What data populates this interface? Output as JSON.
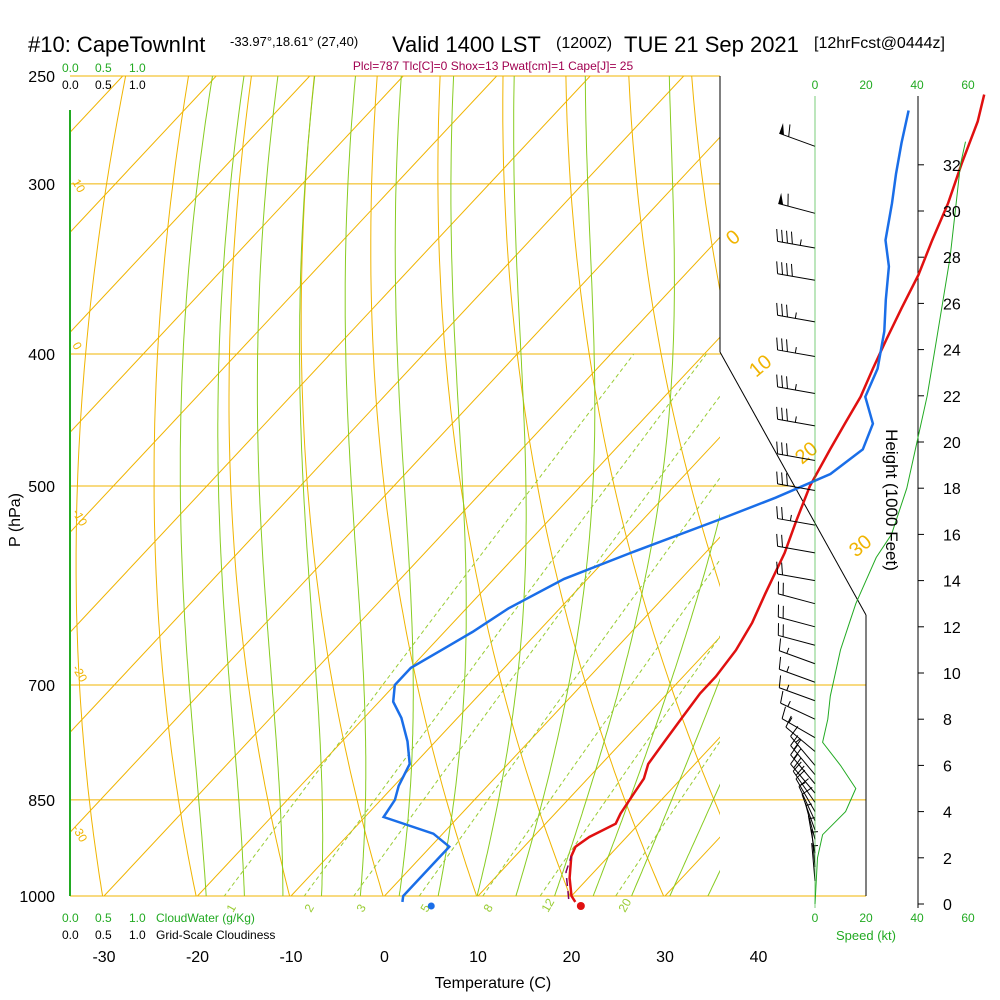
{
  "header": {
    "station": "#10: CapeTownInt",
    "coords": "-33.97°,18.61° (27,40)",
    "valid": "Valid 1400 LST",
    "zulu": "(1200Z)",
    "date": "TUE 21 Sep 2021",
    "fcst": "[12hrFcst@0444z]"
  },
  "indices": "Plcl=787 Tlc[C]=0 Shox=13 Pwat[cm]=1 Cape[J]= 25",
  "colors": {
    "isobar": "#f0b400",
    "isotherm": "#f0b400",
    "dry_adiabat": "#f0b400",
    "moist_adiabat": "#88cc22",
    "mixing_ratio": "#99cc33",
    "temperature": "#e01010",
    "dewpoint": "#1a6ee8",
    "parcel": "#800060",
    "cloud": "#22aa22",
    "indices": "#a00050"
  },
  "scales": {
    "cloudwater_top": [
      "0.0",
      "0.5",
      "1.0"
    ],
    "cloudiness_top": [
      "0.0",
      "0.5",
      "1.0"
    ],
    "cloudwater_bottom": [
      "0.0",
      "0.5",
      "1.0"
    ],
    "cloudiness_bottom": [
      "0.0",
      "0.5",
      "1.0"
    ],
    "cloudwater_label": "CloudWater (g/Kg)",
    "cloudiness_label": "Grid-Scale Cloudiness",
    "speed_ticks": [
      "0",
      "20",
      "40",
      "60"
    ],
    "speed_label": "Speed (kt)"
  },
  "chart_data": {
    "type": "line",
    "xlabel": "Temperature (C)",
    "ylabel": "P (hPa)",
    "y2label": "Height (1000 Feet)",
    "x_ticks": [
      -30,
      -20,
      -10,
      0,
      10,
      20,
      30,
      40
    ],
    "p_ticks": [
      250,
      300,
      400,
      500,
      700,
      850,
      1000
    ],
    "height_ticks": [
      0,
      2,
      4,
      6,
      8,
      10,
      12,
      14,
      16,
      18,
      20,
      22,
      24,
      26,
      28,
      30,
      32
    ],
    "dry_adiabat_labels": [
      "10",
      "0",
      "-10",
      "-20",
      "-30",
      "0",
      "10",
      "20",
      "30"
    ],
    "mixing_ratio_labels": [
      "1",
      "2",
      "3",
      "5",
      "8",
      "12",
      "20"
    ],
    "series": [
      {
        "name": "temperature",
        "points": [
          [
            21,
            1010
          ],
          [
            20,
            1000
          ],
          [
            18,
            970
          ],
          [
            16,
            935
          ],
          [
            15.5,
            920
          ],
          [
            16,
            905
          ],
          [
            17.5,
            885
          ],
          [
            17,
            870
          ],
          [
            16.5,
            845
          ],
          [
            16,
            820
          ],
          [
            15,
            800
          ],
          [
            14.5,
            770
          ],
          [
            14,
            740
          ],
          [
            13.5,
            710
          ],
          [
            13.5,
            690
          ],
          [
            13,
            660
          ],
          [
            12,
            630
          ],
          [
            10.5,
            600
          ],
          [
            8.5,
            560
          ],
          [
            6.5,
            530
          ],
          [
            4.5,
            500
          ],
          [
            3,
            470
          ],
          [
            2,
            450
          ],
          [
            1,
            430
          ],
          [
            -0.5,
            410
          ],
          [
            -2,
            390
          ],
          [
            -3.5,
            370
          ],
          [
            -5,
            350
          ],
          [
            -7,
            330
          ],
          [
            -9,
            310
          ],
          [
            -11.5,
            290
          ],
          [
            -14,
            270
          ],
          [
            -16,
            258
          ]
        ]
      },
      {
        "name": "dewpoint",
        "points": [
          [
            2.5,
            1010
          ],
          [
            2,
            1000
          ],
          [
            2,
            970
          ],
          [
            2,
            940
          ],
          [
            2,
            920
          ],
          [
            -1,
            900
          ],
          [
            -8,
            875
          ],
          [
            -8.5,
            850
          ],
          [
            -9.5,
            830
          ],
          [
            -10.5,
            800
          ],
          [
            -13,
            770
          ],
          [
            -16,
            740
          ],
          [
            -18.5,
            720
          ],
          [
            -20,
            700
          ],
          [
            -20,
            680
          ],
          [
            -18.5,
            660
          ],
          [
            -17,
            640
          ],
          [
            -15.5,
            615
          ],
          [
            -12.5,
            585
          ],
          [
            -8,
            560
          ],
          [
            -2,
            530
          ],
          [
            2,
            510
          ],
          [
            5.5,
            490
          ],
          [
            6.5,
            470
          ],
          [
            5,
            450
          ],
          [
            1.5,
            430
          ],
          [
            0,
            410
          ],
          [
            -3,
            385
          ],
          [
            -6,
            365
          ],
          [
            -9,
            345
          ],
          [
            -12,
            330
          ],
          [
            -15,
            310
          ],
          [
            -17.5,
            295
          ],
          [
            -20,
            280
          ],
          [
            -22.5,
            265
          ]
        ]
      },
      {
        "name": "parcel",
        "points": [
          [
            20,
            1005
          ],
          [
            17,
            960
          ],
          [
            16,
            935
          ]
        ]
      }
    ],
    "surface_temperature": 22,
    "surface_dewpoint": 6,
    "cloud_height_kft": [
      0,
      2,
      4,
      6,
      8,
      10,
      12,
      14,
      16,
      18,
      20,
      22,
      24,
      26,
      28,
      30,
      32
    ],
    "wind": [
      {
        "z": 32.8,
        "dir": 290,
        "spd": 60
      },
      {
        "z": 29.9,
        "dir": 285,
        "spd": 60
      },
      {
        "z": 28.4,
        "dir": 280,
        "spd": 45
      },
      {
        "z": 27.0,
        "dir": 280,
        "spd": 40
      },
      {
        "z": 25.2,
        "dir": 280,
        "spd": 35
      },
      {
        "z": 23.7,
        "dir": 280,
        "spd": 35
      },
      {
        "z": 22.1,
        "dir": 280,
        "spd": 35
      },
      {
        "z": 20.7,
        "dir": 280,
        "spd": 35
      },
      {
        "z": 19.2,
        "dir": 280,
        "spd": 30
      },
      {
        "z": 17.9,
        "dir": 280,
        "spd": 30
      },
      {
        "z": 16.4,
        "dir": 280,
        "spd": 25
      },
      {
        "z": 15.2,
        "dir": 280,
        "spd": 20
      },
      {
        "z": 14.0,
        "dir": 280,
        "spd": 20
      },
      {
        "z": 13.0,
        "dir": 285,
        "spd": 20
      },
      {
        "z": 12.0,
        "dir": 285,
        "spd": 20
      },
      {
        "z": 11.2,
        "dir": 285,
        "spd": 20
      },
      {
        "z": 10.4,
        "dir": 290,
        "spd": 15
      },
      {
        "z": 9.6,
        "dir": 290,
        "spd": 15
      },
      {
        "z": 8.8,
        "dir": 290,
        "spd": 15
      },
      {
        "z": 8.0,
        "dir": 295,
        "spd": 15
      },
      {
        "z": 7.2,
        "dir": 300,
        "spd": 15
      },
      {
        "z": 6.6,
        "dir": 310,
        "spd": 10
      },
      {
        "z": 6.0,
        "dir": 320,
        "spd": 15
      },
      {
        "z": 5.6,
        "dir": 320,
        "spd": 20
      },
      {
        "z": 5.2,
        "dir": 320,
        "spd": 20
      },
      {
        "z": 4.8,
        "dir": 320,
        "spd": 20
      },
      {
        "z": 4.4,
        "dir": 325,
        "spd": 20
      },
      {
        "z": 4.0,
        "dir": 330,
        "spd": 15
      },
      {
        "z": 3.6,
        "dir": 335,
        "spd": 10
      },
      {
        "z": 3.2,
        "dir": 340,
        "spd": 10
      },
      {
        "z": 2.8,
        "dir": 345,
        "spd": 5
      },
      {
        "z": 2.2,
        "dir": 350,
        "spd": 5
      },
      {
        "z": 1.6,
        "dir": 355,
        "spd": 5
      },
      {
        "z": 1.0,
        "dir": 355,
        "spd": 5
      }
    ],
    "speed_profile": [
      [
        0,
        0
      ],
      [
        2,
        1
      ],
      [
        3,
        3
      ],
      [
        4,
        12
      ],
      [
        5,
        16
      ],
      [
        6,
        10
      ],
      [
        7,
        3
      ],
      [
        8,
        5
      ],
      [
        9,
        6
      ],
      [
        10,
        8
      ],
      [
        11,
        10
      ],
      [
        12,
        13
      ],
      [
        13,
        16
      ],
      [
        14,
        20
      ],
      [
        15,
        24
      ],
      [
        16,
        30
      ],
      [
        18,
        36
      ],
      [
        20,
        40
      ],
      [
        22,
        44
      ],
      [
        24,
        47
      ],
      [
        26,
        50
      ],
      [
        28,
        53
      ],
      [
        30,
        55
      ],
      [
        32,
        57
      ],
      [
        33,
        59
      ]
    ]
  }
}
